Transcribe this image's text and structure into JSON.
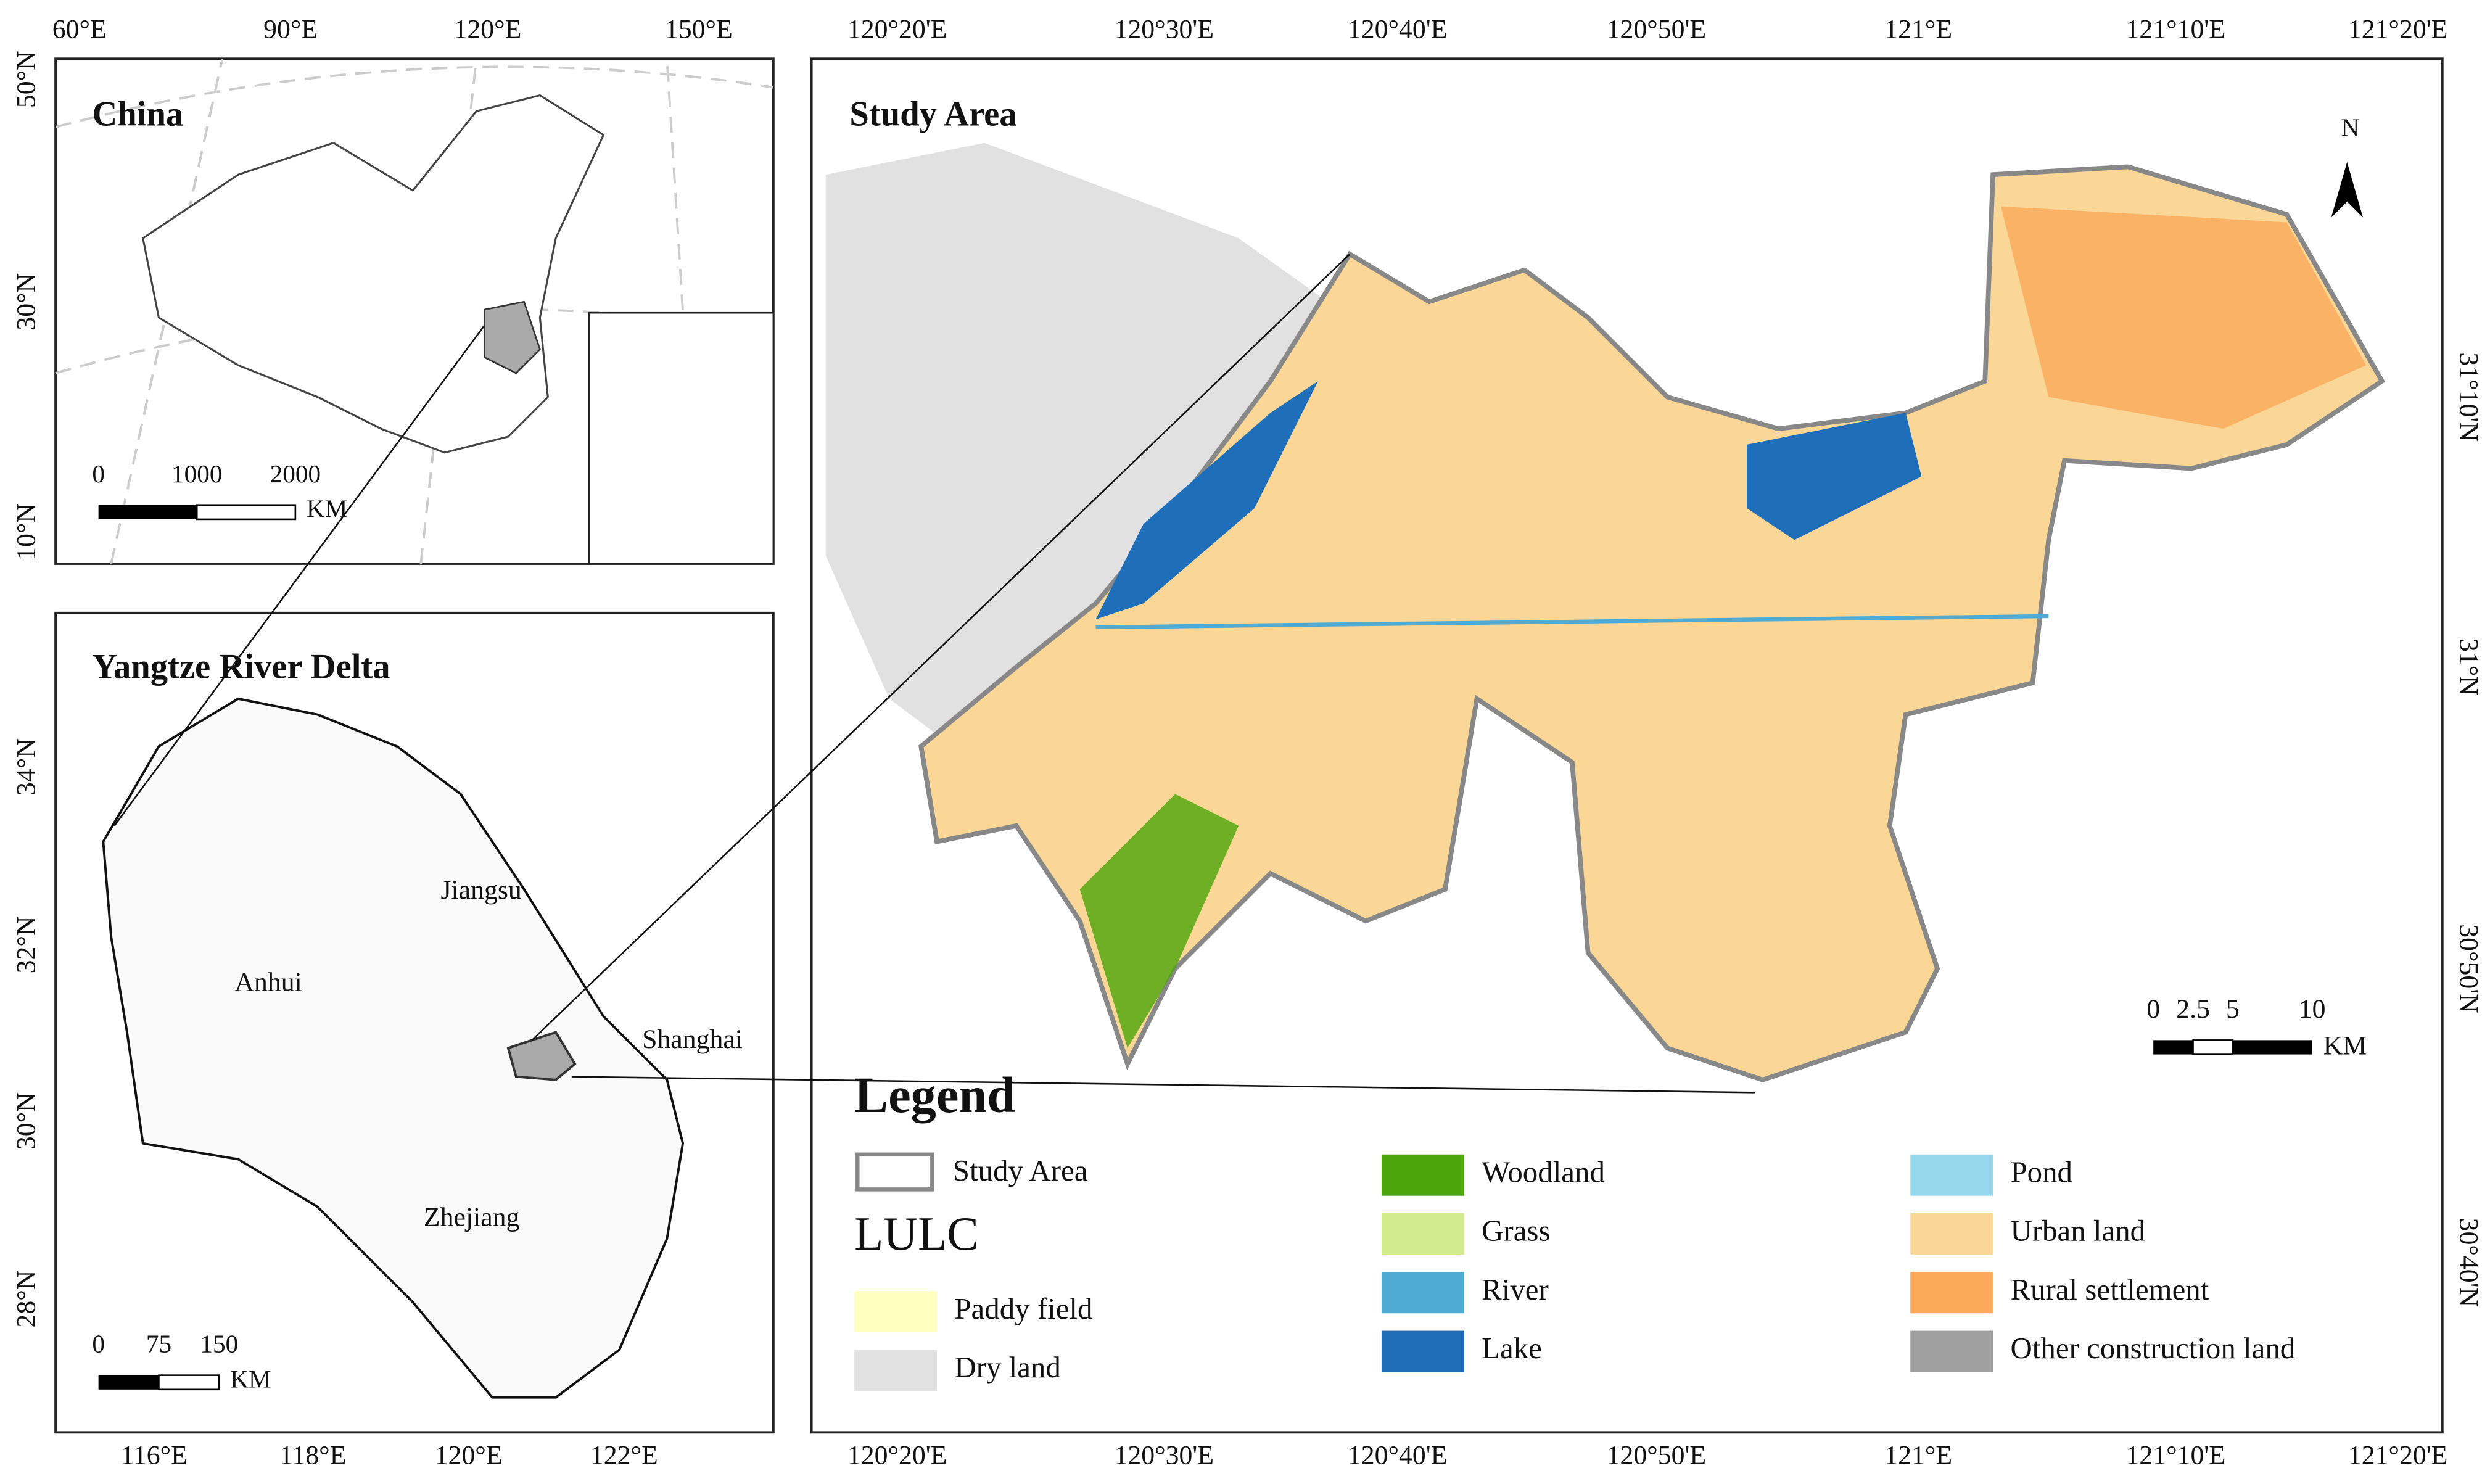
{
  "china_panel": {
    "title": "China",
    "top_ticks": [
      "60°E",
      "90°E",
      "120°E",
      "150°E"
    ],
    "left_ticks": [
      "50°N",
      "30°N",
      "10°N"
    ],
    "scale": [
      "0",
      "1000",
      "2000"
    ],
    "scale_unit": "KM"
  },
  "delta_panel": {
    "title": "Yangtze River Delta",
    "left_ticks": [
      "34°N",
      "32°N",
      "30°N",
      "28°N"
    ],
    "bottom_ticks": [
      "116°E",
      "118°E",
      "120°E",
      "122°E"
    ],
    "regions": [
      "Jiangsu",
      "Anhui",
      "Shanghai",
      "Zhejiang"
    ],
    "scale": [
      "0",
      "75",
      "150"
    ],
    "scale_unit": "KM"
  },
  "study_panel": {
    "title": "Study Area",
    "north": "N",
    "top_ticks": [
      "120°20'E",
      "120°30'E",
      "120°40'E",
      "120°50'E",
      "121°E",
      "121°10'E",
      "121°20'E"
    ],
    "bottom_ticks": [
      "120°20'E",
      "120°30'E",
      "120°40'E",
      "120°50'E",
      "121°E",
      "121°10'E",
      "121°20'E"
    ],
    "right_ticks": [
      "31°10'N",
      "31°N",
      "30°50'N",
      "30°40'N"
    ],
    "scale": [
      "0",
      "2.5",
      "5",
      "10"
    ],
    "scale_unit": "KM"
  },
  "legend": {
    "title": "Legend",
    "boundary": "Study Area",
    "lulc_title": "LULC",
    "items": [
      {
        "label": "Paddy field",
        "color": "#ffffc0"
      },
      {
        "label": "Dry land",
        "color": "#e1e1e1"
      },
      {
        "label": "Woodland",
        "color": "#4ca50a"
      },
      {
        "label": "Grass",
        "color": "#d2eb8c"
      },
      {
        "label": "River",
        "color": "#50aad2"
      },
      {
        "label": "Lake",
        "color": "#1e6eb9"
      },
      {
        "label": "Pond",
        "color": "#96d7eb"
      },
      {
        "label": "Urban land",
        "color": "#fad796"
      },
      {
        "label": "Rural settlement",
        "color": "#faaa5a"
      },
      {
        "label": "Other construction land",
        "color": "#a0a0a0"
      }
    ]
  }
}
